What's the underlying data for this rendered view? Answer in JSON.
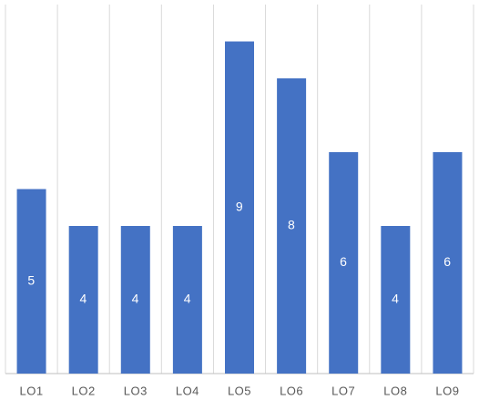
{
  "chart_data": {
    "type": "bar",
    "categories": [
      "LO1",
      "LO2",
      "LO3",
      "LO4",
      "LO5",
      "LO6",
      "LO7",
      "LO8",
      "LO9"
    ],
    "values": [
      5,
      4,
      4,
      4,
      9,
      8,
      6,
      4,
      6
    ],
    "color": "#4472c4",
    "ylim": [
      0,
      10
    ],
    "grid": true,
    "data_labels": true
  }
}
